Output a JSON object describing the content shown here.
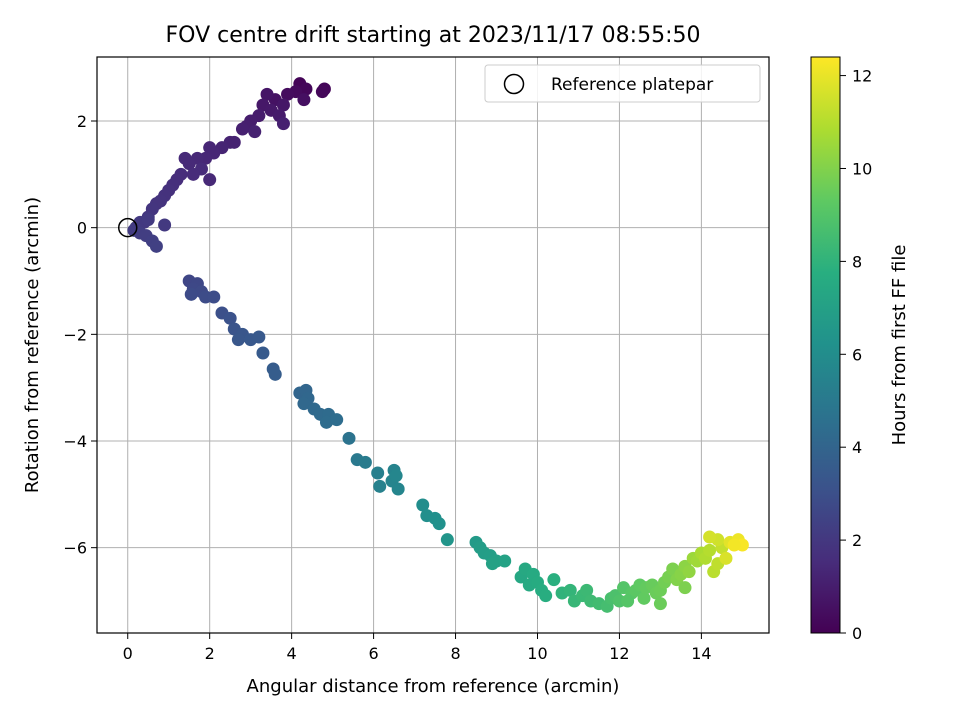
{
  "chart_data": {
    "type": "scatter",
    "title": "FOV centre drift starting at 2023/11/17 08:55:50",
    "xlabel": "Angular distance from reference (arcmin)",
    "ylabel": "Rotation from reference (arcmin)",
    "xlim": [
      -0.75,
      15.65
    ],
    "ylim": [
      -7.6,
      3.2
    ],
    "xticks": [
      0,
      2,
      4,
      6,
      8,
      10,
      12,
      14
    ],
    "yticks": [
      -6,
      -4,
      -2,
      0,
      2
    ],
    "grid": true,
    "legend": {
      "placement": "top-right",
      "entries": [
        "Reference platepar"
      ]
    },
    "reference_point": {
      "x": 0,
      "y": 0,
      "marker": "open-circle"
    },
    "colorbar": {
      "label": "Hours from first FF file",
      "range": [
        0,
        12.4
      ],
      "ticks": [
        0,
        2,
        4,
        6,
        8,
        10,
        12
      ],
      "colormap": "viridis"
    },
    "series": [
      {
        "color_by": "hours",
        "points": [
          {
            "x": 4.2,
            "y": 2.7,
            "h": 0.1
          },
          {
            "x": 4.35,
            "y": 2.6,
            "h": 0.2
          },
          {
            "x": 4.1,
            "y": 2.55,
            "h": 0.3
          },
          {
            "x": 3.9,
            "y": 2.5,
            "h": 0.4
          },
          {
            "x": 4.3,
            "y": 2.4,
            "h": 0.5
          },
          {
            "x": 3.6,
            "y": 2.4,
            "h": 0.6
          },
          {
            "x": 3.4,
            "y": 2.5,
            "h": 0.7
          },
          {
            "x": 3.8,
            "y": 2.3,
            "h": 0.75
          },
          {
            "x": 3.3,
            "y": 2.3,
            "h": 0.8
          },
          {
            "x": 3.5,
            "y": 2.2,
            "h": 0.85
          },
          {
            "x": 3.7,
            "y": 2.1,
            "h": 0.9
          },
          {
            "x": 3.2,
            "y": 2.1,
            "h": 0.95
          },
          {
            "x": 3.0,
            "y": 2.0,
            "h": 1.0
          },
          {
            "x": 2.9,
            "y": 1.9,
            "h": 1.05
          },
          {
            "x": 2.8,
            "y": 1.85,
            "h": 1.1
          },
          {
            "x": 3.1,
            "y": 1.8,
            "h": 1.15
          },
          {
            "x": 3.8,
            "y": 1.95,
            "h": 1.1
          },
          {
            "x": 4.8,
            "y": 2.6,
            "h": 0.15
          },
          {
            "x": 4.75,
            "y": 2.55,
            "h": 0.2
          },
          {
            "x": 2.5,
            "y": 1.6,
            "h": 1.2
          },
          {
            "x": 2.3,
            "y": 1.5,
            "h": 1.25
          },
          {
            "x": 2.1,
            "y": 1.4,
            "h": 1.3
          },
          {
            "x": 2.0,
            "y": 1.5,
            "h": 1.3
          },
          {
            "x": 1.9,
            "y": 1.3,
            "h": 1.35
          },
          {
            "x": 1.7,
            "y": 1.3,
            "h": 1.4
          },
          {
            "x": 1.5,
            "y": 1.2,
            "h": 1.45
          },
          {
            "x": 1.4,
            "y": 1.3,
            "h": 1.45
          },
          {
            "x": 1.8,
            "y": 1.1,
            "h": 1.5
          },
          {
            "x": 1.6,
            "y": 1.0,
            "h": 1.5
          },
          {
            "x": 1.3,
            "y": 1.0,
            "h": 1.55
          },
          {
            "x": 1.2,
            "y": 0.9,
            "h": 1.6
          },
          {
            "x": 1.1,
            "y": 0.8,
            "h": 1.65
          },
          {
            "x": 1.0,
            "y": 0.7,
            "h": 1.7
          },
          {
            "x": 0.9,
            "y": 0.6,
            "h": 1.75
          },
          {
            "x": 0.8,
            "y": 0.5,
            "h": 1.8
          },
          {
            "x": 0.7,
            "y": 0.45,
            "h": 1.85
          },
          {
            "x": 0.6,
            "y": 0.35,
            "h": 1.9
          },
          {
            "x": 0.5,
            "y": 0.2,
            "h": 1.95
          },
          {
            "x": 0.4,
            "y": 0.1,
            "h": 2.0
          },
          {
            "x": 0.3,
            "y": 0.1,
            "h": 2.05
          },
          {
            "x": 0.2,
            "y": 0.0,
            "h": 2.1
          },
          {
            "x": 0.15,
            "y": -0.05,
            "h": 2.15
          },
          {
            "x": 0.3,
            "y": -0.1,
            "h": 2.2
          },
          {
            "x": 0.45,
            "y": -0.15,
            "h": 2.25
          },
          {
            "x": 0.6,
            "y": -0.25,
            "h": 2.3
          },
          {
            "x": 0.7,
            "y": -0.35,
            "h": 2.35
          },
          {
            "x": 0.5,
            "y": 0.15,
            "h": 2.1
          },
          {
            "x": 0.9,
            "y": 0.05,
            "h": 2.05
          },
          {
            "x": 2.0,
            "y": 0.9,
            "h": 1.4
          },
          {
            "x": 2.6,
            "y": 1.6,
            "h": 1.15
          },
          {
            "x": 1.5,
            "y": -1.0,
            "h": 2.6
          },
          {
            "x": 1.7,
            "y": -1.05,
            "h": 2.65
          },
          {
            "x": 1.6,
            "y": -1.15,
            "h": 2.7
          },
          {
            "x": 1.8,
            "y": -1.2,
            "h": 2.75
          },
          {
            "x": 1.55,
            "y": -1.25,
            "h": 2.8
          },
          {
            "x": 1.9,
            "y": -1.3,
            "h": 2.85
          },
          {
            "x": 2.1,
            "y": -1.3,
            "h": 2.9
          },
          {
            "x": 2.3,
            "y": -1.6,
            "h": 3.0
          },
          {
            "x": 2.5,
            "y": -1.7,
            "h": 3.1
          },
          {
            "x": 2.6,
            "y": -1.9,
            "h": 3.2
          },
          {
            "x": 2.8,
            "y": -2.0,
            "h": 3.3
          },
          {
            "x": 2.7,
            "y": -2.1,
            "h": 3.35
          },
          {
            "x": 3.0,
            "y": -2.1,
            "h": 3.4
          },
          {
            "x": 3.2,
            "y": -2.05,
            "h": 3.45
          },
          {
            "x": 3.3,
            "y": -2.35,
            "h": 3.5
          },
          {
            "x": 3.55,
            "y": -2.65,
            "h": 3.6
          },
          {
            "x": 3.6,
            "y": -2.75,
            "h": 3.65
          },
          {
            "x": 4.2,
            "y": -3.1,
            "h": 4.0
          },
          {
            "x": 4.35,
            "y": -3.05,
            "h": 4.05
          },
          {
            "x": 4.4,
            "y": -3.2,
            "h": 4.1
          },
          {
            "x": 4.3,
            "y": -3.3,
            "h": 4.15
          },
          {
            "x": 4.55,
            "y": -3.4,
            "h": 4.2
          },
          {
            "x": 4.7,
            "y": -3.5,
            "h": 4.25
          },
          {
            "x": 4.9,
            "y": -3.5,
            "h": 4.3
          },
          {
            "x": 4.85,
            "y": -3.65,
            "h": 4.35
          },
          {
            "x": 5.1,
            "y": -3.6,
            "h": 4.4
          },
          {
            "x": 5.4,
            "y": -3.95,
            "h": 4.7
          },
          {
            "x": 5.6,
            "y": -4.35,
            "h": 5.0
          },
          {
            "x": 5.8,
            "y": -4.4,
            "h": 5.1
          },
          {
            "x": 6.1,
            "y": -4.6,
            "h": 5.3
          },
          {
            "x": 6.15,
            "y": -4.85,
            "h": 5.4
          },
          {
            "x": 6.5,
            "y": -4.55,
            "h": 5.5
          },
          {
            "x": 6.45,
            "y": -4.75,
            "h": 5.55
          },
          {
            "x": 6.6,
            "y": -4.9,
            "h": 5.6
          },
          {
            "x": 6.55,
            "y": -4.65,
            "h": 5.65
          },
          {
            "x": 7.2,
            "y": -5.2,
            "h": 6.0
          },
          {
            "x": 7.3,
            "y": -5.4,
            "h": 6.1
          },
          {
            "x": 7.5,
            "y": -5.45,
            "h": 6.15
          },
          {
            "x": 7.6,
            "y": -5.55,
            "h": 6.2
          },
          {
            "x": 7.8,
            "y": -5.85,
            "h": 6.4
          },
          {
            "x": 8.5,
            "y": -5.9,
            "h": 6.7
          },
          {
            "x": 8.6,
            "y": -6.0,
            "h": 6.8
          },
          {
            "x": 8.7,
            "y": -6.1,
            "h": 6.85
          },
          {
            "x": 8.85,
            "y": -6.15,
            "h": 6.9
          },
          {
            "x": 9.0,
            "y": -6.25,
            "h": 7.0
          },
          {
            "x": 8.9,
            "y": -6.3,
            "h": 7.05
          },
          {
            "x": 9.2,
            "y": -6.25,
            "h": 7.1
          },
          {
            "x": 9.6,
            "y": -6.55,
            "h": 7.4
          },
          {
            "x": 9.7,
            "y": -6.4,
            "h": 7.45
          },
          {
            "x": 9.8,
            "y": -6.7,
            "h": 7.5
          },
          {
            "x": 9.9,
            "y": -6.5,
            "h": 7.55
          },
          {
            "x": 10.0,
            "y": -6.65,
            "h": 7.6
          },
          {
            "x": 10.1,
            "y": -6.8,
            "h": 7.65
          },
          {
            "x": 10.2,
            "y": -6.9,
            "h": 7.7
          },
          {
            "x": 10.4,
            "y": -6.6,
            "h": 7.8
          },
          {
            "x": 10.6,
            "y": -6.85,
            "h": 8.0
          },
          {
            "x": 10.8,
            "y": -6.8,
            "h": 8.1
          },
          {
            "x": 10.9,
            "y": -7.0,
            "h": 8.2
          },
          {
            "x": 11.1,
            "y": -6.9,
            "h": 8.3
          },
          {
            "x": 11.2,
            "y": -6.8,
            "h": 8.35
          },
          {
            "x": 11.3,
            "y": -7.0,
            "h": 8.4
          },
          {
            "x": 11.5,
            "y": -7.05,
            "h": 8.5
          },
          {
            "x": 11.7,
            "y": -7.1,
            "h": 8.6
          },
          {
            "x": 11.8,
            "y": -6.95,
            "h": 8.7
          },
          {
            "x": 11.9,
            "y": -6.9,
            "h": 8.8
          },
          {
            "x": 12.0,
            "y": -7.0,
            "h": 8.9
          },
          {
            "x": 12.1,
            "y": -6.75,
            "h": 9.0
          },
          {
            "x": 12.3,
            "y": -6.85,
            "h": 9.1
          },
          {
            "x": 12.4,
            "y": -6.8,
            "h": 9.2
          },
          {
            "x": 12.5,
            "y": -6.7,
            "h": 9.3
          },
          {
            "x": 12.6,
            "y": -6.95,
            "h": 9.35
          },
          {
            "x": 12.65,
            "y": -6.75,
            "h": 9.4
          },
          {
            "x": 12.8,
            "y": -6.7,
            "h": 9.5
          },
          {
            "x": 12.9,
            "y": -6.85,
            "h": 9.55
          },
          {
            "x": 13.0,
            "y": -6.8,
            "h": 9.6
          },
          {
            "x": 13.1,
            "y": -6.65,
            "h": 9.7
          },
          {
            "x": 13.2,
            "y": -6.55,
            "h": 9.8
          },
          {
            "x": 13.3,
            "y": -6.4,
            "h": 9.9
          },
          {
            "x": 13.4,
            "y": -6.6,
            "h": 10.0
          },
          {
            "x": 13.5,
            "y": -6.5,
            "h": 10.1
          },
          {
            "x": 13.6,
            "y": -6.35,
            "h": 10.2
          },
          {
            "x": 13.7,
            "y": -6.45,
            "h": 10.3
          },
          {
            "x": 13.8,
            "y": -6.2,
            "h": 10.5
          },
          {
            "x": 13.9,
            "y": -6.25,
            "h": 10.6
          },
          {
            "x": 14.0,
            "y": -6.1,
            "h": 10.8
          },
          {
            "x": 14.1,
            "y": -6.2,
            "h": 10.9
          },
          {
            "x": 14.2,
            "y": -6.05,
            "h": 11.0
          },
          {
            "x": 14.3,
            "y": -6.45,
            "h": 11.1
          },
          {
            "x": 14.4,
            "y": -6.3,
            "h": 11.2
          },
          {
            "x": 14.5,
            "y": -6.0,
            "h": 11.3
          },
          {
            "x": 14.4,
            "y": -5.85,
            "h": 11.5
          },
          {
            "x": 14.2,
            "y": -5.8,
            "h": 11.6
          },
          {
            "x": 14.6,
            "y": -6.2,
            "h": 11.7
          },
          {
            "x": 14.7,
            "y": -5.9,
            "h": 11.9
          },
          {
            "x": 14.9,
            "y": -5.85,
            "h": 12.1
          },
          {
            "x": 15.0,
            "y": -5.95,
            "h": 12.3
          },
          {
            "x": 14.8,
            "y": -5.95,
            "h": 12.2
          },
          {
            "x": 13.6,
            "y": -6.75,
            "h": 9.9
          },
          {
            "x": 13.0,
            "y": -7.05,
            "h": 9.55
          },
          {
            "x": 12.2,
            "y": -7.0,
            "h": 9.05
          }
        ]
      }
    ]
  }
}
